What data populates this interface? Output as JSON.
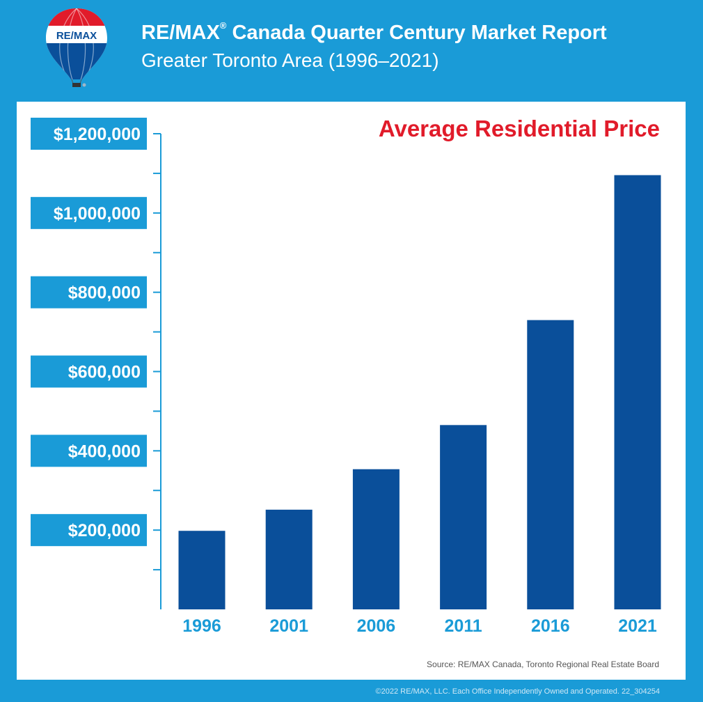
{
  "header": {
    "logo_text": "RE/MAX",
    "title_main": "RE/MAX",
    "title_registered": "®",
    "title_rest": " Canada Quarter Century Market Report",
    "subtitle": "Greater Toronto Area (1996–2021)"
  },
  "chart_data": {
    "type": "bar",
    "title": "Average Residential Price",
    "categories": [
      "1996",
      "2001",
      "2006",
      "2011",
      "2016",
      "2021"
    ],
    "values": [
      198150,
      251508,
      353610,
      465014,
      729824,
      1095475
    ],
    "ylim": [
      0,
      1200000
    ],
    "ytick_values": [
      200000,
      400000,
      600000,
      800000,
      1000000,
      1200000
    ],
    "ytick_labels": [
      "$200,000",
      "$400,000",
      "$600,000",
      "$800,000",
      "$1,000,000",
      "$1,200,000"
    ],
    "grid": false,
    "xlabel": "",
    "ylabel": "",
    "colors": {
      "bar": "#0a4f9a",
      "tick_label_bg": "#1a9bd7",
      "tick_label_text": "#ffffff",
      "axis": "#1a9bd7",
      "category_label": "#1a9bd7",
      "title": "#e11b2a"
    },
    "source": "Source: RE/MAX Canada, Toronto Regional Real Estate Board"
  },
  "footer": {
    "copyright": "©2022 RE/MAX, LLC. Each Office Independently Owned and Operated. 22_304254"
  },
  "colors": {
    "background": "#1a9bd7",
    "panel": "#ffffff",
    "logo_red": "#e11b2a",
    "logo_blue": "#0a4f9a"
  }
}
